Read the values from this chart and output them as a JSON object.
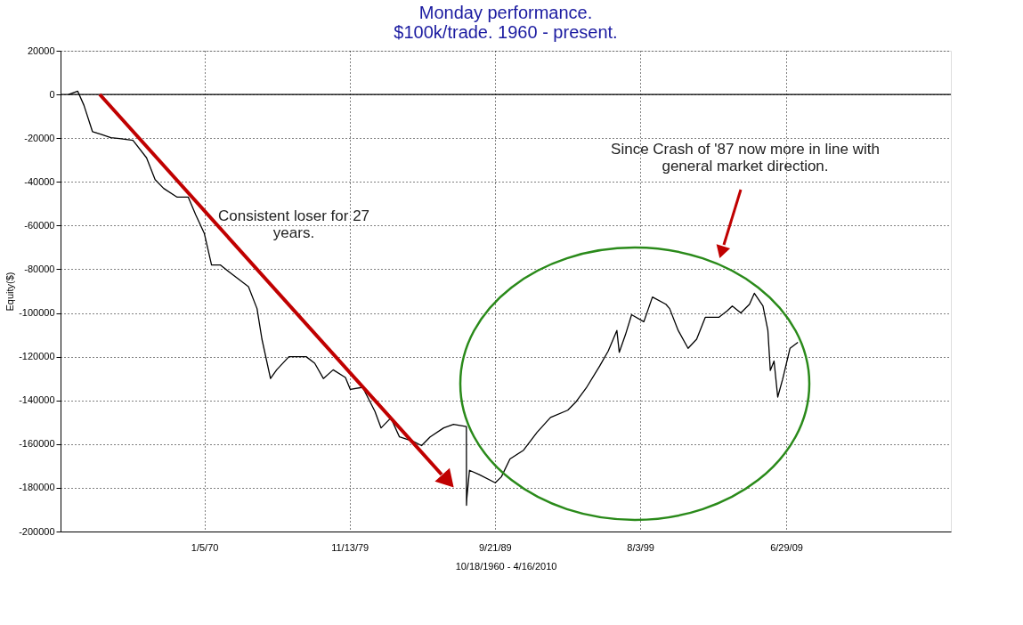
{
  "chart_data": {
    "type": "line",
    "title": "Monday performance.\n$100k/trade. 1960 - present.",
    "xlabel": "10/18/1960 - 4/16/2010",
    "ylabel": "Equity($)",
    "x": [
      "1960-10-18",
      "1961-06",
      "1961-11",
      "1962-06",
      "1963-01",
      "1963-09",
      "1964-04",
      "1965-03",
      "1966-02",
      "1966-09",
      "1967-04",
      "1968-03",
      "1968-12",
      "1969-06",
      "1970-01",
      "1970-07",
      "1971-02",
      "1971-11",
      "1973-01",
      "1973-08",
      "1973-12",
      "1974-07",
      "1974-12",
      "1975-10",
      "1976-12",
      "1977-07",
      "1978-02",
      "1978-10",
      "1979-08",
      "1979-12",
      "1980-10",
      "1981-08",
      "1982-01",
      "1982-09",
      "1983-04",
      "1984-03",
      "1984-10",
      "1985-05",
      "1986-04",
      "1986-12",
      "1987-10-16",
      "1987-10-19",
      "1987-10-26",
      "1988-01",
      "1988-09",
      "1989-10",
      "1990-03",
      "1990-10",
      "1991-09",
      "1992-08",
      "1993-07",
      "1994-09",
      "1995-04",
      "1995-12",
      "1996-11",
      "1997-06",
      "1998-01",
      "1998-03",
      "1998-08",
      "1999-01",
      "1999-11",
      "2000-06",
      "2001-05",
      "2001-08",
      "2002-03",
      "2002-11",
      "2003-06",
      "2004-01",
      "2004-12",
      "2005-07",
      "2005-11",
      "2006-06",
      "2007-01",
      "2007-05",
      "2007-12",
      "2008-04",
      "2008-06",
      "2008-09",
      "2008-12",
      "2009-04",
      "2009-10",
      "2010-04-16"
    ],
    "series": [
      {
        "color": "#000000",
        "values": [
          0,
          1500,
          -4900,
          -17000,
          -18200,
          -19800,
          -20200,
          -21000,
          -29000,
          -39000,
          -43000,
          -47000,
          -47000,
          -55000,
          -63500,
          -78000,
          -78000,
          -82000,
          -88000,
          -98000,
          -112000,
          -130000,
          -126000,
          -120000,
          -120000,
          -123000,
          -130000,
          -126000,
          -129500,
          -135000,
          -134000,
          -145000,
          -152600,
          -148000,
          -156700,
          -158700,
          -160700,
          -156700,
          -152600,
          -151000,
          -152000,
          -188000,
          -185000,
          -172000,
          -174000,
          -177700,
          -175000,
          -166800,
          -162800,
          -154600,
          -147800,
          -144500,
          -140500,
          -134400,
          -124300,
          -117400,
          -108000,
          -118000,
          -110000,
          -100800,
          -104000,
          -92700,
          -96000,
          -98000,
          -108000,
          -116200,
          -112000,
          -102000,
          -102000,
          -99000,
          -96800,
          -100000,
          -96000,
          -91000,
          -96800,
          -108000,
          -126300,
          -122000,
          -138500,
          -130400,
          -116200,
          -113400
        ]
      }
    ],
    "xlim": [
      "1960-04-01",
      "2020-09-01"
    ],
    "xticks": [
      {
        "value": "1970-01-05",
        "label": "1/5/70"
      },
      {
        "value": "1979-11-13",
        "label": "11/13/79"
      },
      {
        "value": "1989-09-21",
        "label": "9/21/89"
      },
      {
        "value": "1999-08-03",
        "label": "8/3/99"
      },
      {
        "value": "2009-06-29",
        "label": "6/29/09"
      }
    ],
    "ylim": [
      -200000,
      20000
    ],
    "yticks": [
      20000,
      0,
      -20000,
      -40000,
      -60000,
      -80000,
      -100000,
      -120000,
      -140000,
      -160000,
      -180000,
      -200000
    ],
    "ref_lines": [
      {
        "axis": "y",
        "value": 0,
        "color": "#000000"
      }
    ],
    "annotations": [
      "Consistent loser for 27\nyears.",
      "Since Crash of '87 now more in line with\ngeneral market direction."
    ],
    "grid": true,
    "line_style": "solid",
    "marker": "none"
  }
}
